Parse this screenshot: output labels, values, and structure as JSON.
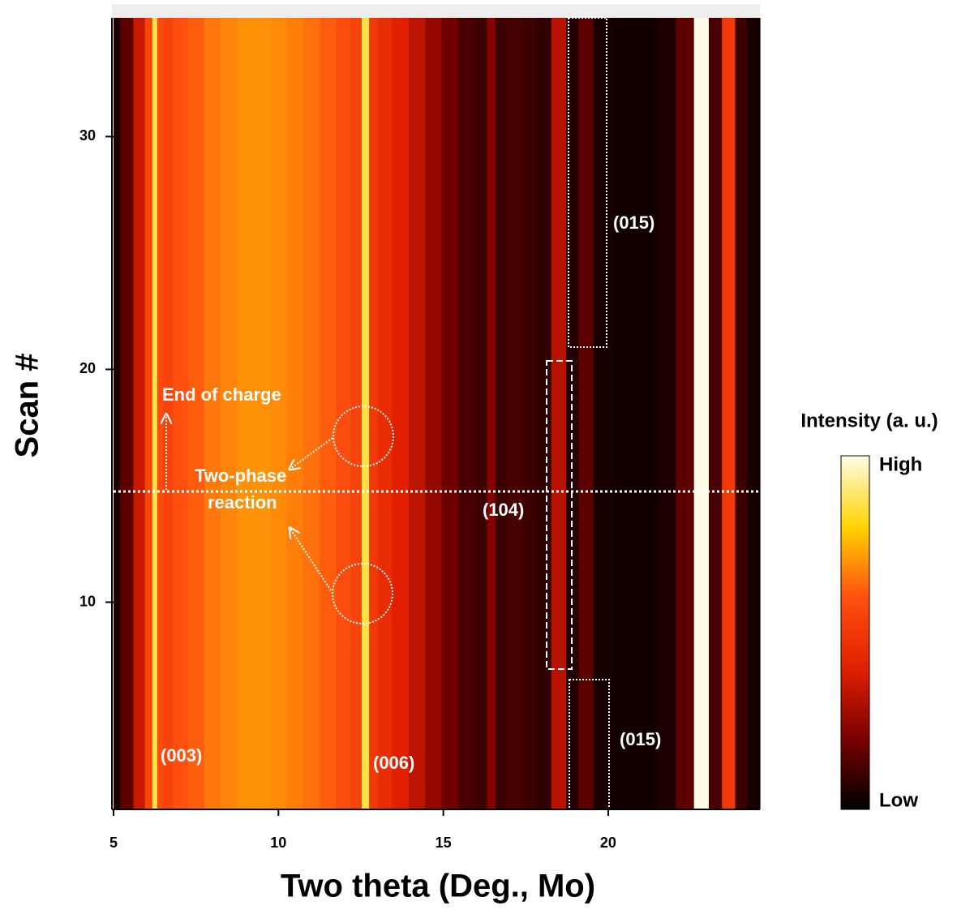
{
  "chart_data": {
    "type": "heatmap",
    "xlabel": "Two theta (Deg., Mo)",
    "ylabel": "Scan #",
    "colorbar_label": "Intensity (a. u.)",
    "xlim": [
      5,
      24.6
    ],
    "ylim": [
      1.1,
      35.1
    ],
    "xticks": [
      5,
      10,
      15,
      20
    ],
    "yticks": [
      10,
      20,
      30
    ],
    "clim": [
      0,
      1
    ],
    "cticks": [
      {
        "value": 0,
        "label": "Low"
      },
      {
        "value": 1,
        "label": "High"
      }
    ],
    "colormap": [
      "#000000",
      "#7a0000",
      "#e02000",
      "#ff5010",
      "#ffd400",
      "#fffbe6"
    ],
    "x": [
      5.0,
      5.4,
      5.8,
      6.1,
      6.25,
      6.4,
      6.6,
      7.0,
      7.5,
      8.0,
      8.5,
      9.0,
      9.5,
      10.0,
      10.5,
      11.0,
      11.5,
      12.0,
      12.4,
      12.65,
      12.85,
      13.2,
      13.7,
      14.2,
      14.7,
      15.2,
      15.7,
      16.2,
      16.45,
      16.7,
      17.2,
      17.6,
      18.0,
      18.55,
      18.9,
      19.3,
      19.8,
      20.5,
      21.2,
      21.8,
      22.3,
      22.9,
      23.2,
      23.7,
      24.0,
      24.4
    ],
    "values": [
      0.05,
      0.15,
      0.35,
      0.55,
      0.86,
      0.58,
      0.55,
      0.6,
      0.62,
      0.66,
      0.68,
      0.7,
      0.7,
      0.69,
      0.67,
      0.65,
      0.62,
      0.58,
      0.55,
      0.86,
      0.5,
      0.45,
      0.4,
      0.33,
      0.25,
      0.18,
      0.12,
      0.1,
      0.22,
      0.1,
      0.12,
      0.1,
      0.08,
      0.32,
      0.06,
      0.15,
      0.04,
      0.03,
      0.03,
      0.05,
      0.15,
      1.0,
      0.12,
      0.5,
      0.1,
      0.04
    ],
    "annotations": [
      "(003)",
      "(006)",
      "(104)",
      "(015)",
      "(015)",
      "End of charge",
      "Two-phase",
      "reaction"
    ]
  }
}
